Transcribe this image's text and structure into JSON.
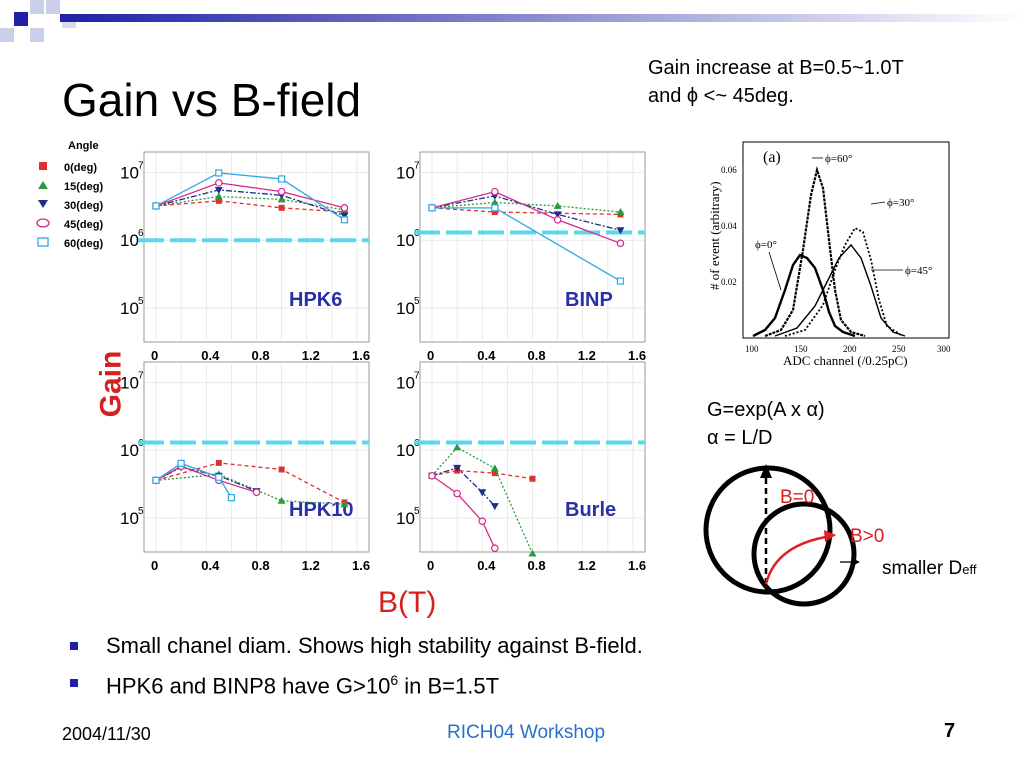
{
  "slide": {
    "title": "Gain vs B-field",
    "note_line1": "Gain increase at B=0.5~1.0T",
    "note_line2": "and ϕ <~ 45deg.",
    "y_axis_label": "Gain",
    "x_axis_label": "B(T)",
    "formula_line1": "G=exp(A x α)",
    "formula_line2": "α = L/D",
    "circle_label_b0": "B=0",
    "circle_label_bpos": "B>0",
    "circle_label_deff": "smaller D",
    "circle_label_deff_sub": "eff",
    "bullets": [
      "Small chanel diam. Shows high stability against B-field.",
      "HPK6 and BINP8 have G>10"
    ],
    "bullet2_sup": "6",
    "bullet2_tail": " in B=1.5T",
    "footer_date": "2004/11/30",
    "footer_center": "RICH04 Workshop",
    "footer_page": "7",
    "colors": {
      "title_blue": "#1f1fa8",
      "accent_red": "#d42020",
      "footer_blue": "#2a6fc9",
      "ref_line": "#58d8ea"
    }
  },
  "legend": {
    "title": "Angle",
    "items": [
      {
        "label": "0(deg)",
        "marker": "square",
        "color": "#e03030"
      },
      {
        "label": "15(deg)",
        "marker": "triangle-up",
        "color": "#2a9a3a"
      },
      {
        "label": "30(deg)",
        "marker": "triangle-down",
        "color": "#1f2e8a"
      },
      {
        "label": "45(deg)",
        "marker": "circle-open",
        "color": "#d6288a"
      },
      {
        "label": "60(deg)",
        "marker": "square-open",
        "color": "#30a8e0"
      }
    ]
  },
  "chart_data": [
    {
      "type": "line",
      "title": "HPK6",
      "xlim": [
        0,
        1.6
      ],
      "ylog": true,
      "xticks": [
        "0",
        "0.4",
        "0.8",
        "1.2",
        "1.6"
      ],
      "series": [
        {
          "name": "0(deg)",
          "x": [
            0,
            0.5,
            1.0,
            1.5
          ],
          "y": [
            3200000.0,
            3800000.0,
            3000000.0,
            2600000.0
          ]
        },
        {
          "name": "15(deg)",
          "x": [
            0,
            0.5,
            1.0,
            1.5
          ],
          "y": [
            3200000.0,
            4400000.0,
            4000000.0,
            2800000.0
          ]
        },
        {
          "name": "30(deg)",
          "x": [
            0,
            0.5,
            1.0,
            1.5
          ],
          "y": [
            3200000.0,
            5500000.0,
            4600000.0,
            2300000.0
          ]
        },
        {
          "name": "45(deg)",
          "x": [
            0,
            0.5,
            1.0,
            1.5
          ],
          "y": [
            3200000.0,
            7000000.0,
            5200000.0,
            3000000.0
          ]
        },
        {
          "name": "60(deg)",
          "x": [
            0,
            0.5,
            1.0,
            1.5
          ],
          "y": [
            3200000.0,
            9800000.0,
            8000000.0,
            2000000.0
          ]
        }
      ]
    },
    {
      "type": "line",
      "title": "BINP",
      "xlim": [
        0,
        1.6
      ],
      "ylog": true,
      "xticks": [
        "0",
        "0.4",
        "0.8",
        "1.2",
        "1.6"
      ],
      "series": [
        {
          "name": "0(deg)",
          "x": [
            0,
            0.5,
            1.5
          ],
          "y": [
            3000000.0,
            2600000.0,
            2400000.0
          ]
        },
        {
          "name": "15(deg)",
          "x": [
            0,
            0.5,
            1.0,
            1.5
          ],
          "y": [
            3000000.0,
            3600000.0,
            3200000.0,
            2600000.0
          ]
        },
        {
          "name": "30(deg)",
          "x": [
            0,
            0.5,
            1.0,
            1.5
          ],
          "y": [
            3000000.0,
            4500000.0,
            2400000.0,
            1400000.0
          ]
        },
        {
          "name": "45(deg)",
          "x": [
            0,
            0.5,
            1.0,
            1.5
          ],
          "y": [
            3000000.0,
            5200000.0,
            2000000.0,
            900000.0
          ]
        },
        {
          "name": "60(deg)",
          "x": [
            0,
            0.5,
            1.5
          ],
          "y": [
            3000000.0,
            3000000.0,
            250000.0
          ]
        }
      ]
    },
    {
      "type": "line",
      "title": "HPK10",
      "xlim": [
        0,
        1.6
      ],
      "ylog": true,
      "xticks": [
        "0",
        "0.4",
        "0.8",
        "1.2",
        "1.6"
      ],
      "series": [
        {
          "name": "0(deg)",
          "x": [
            0,
            0.5,
            1.0,
            1.5
          ],
          "y": [
            360000.0,
            650000.0,
            520000.0,
            170000.0
          ]
        },
        {
          "name": "15(deg)",
          "x": [
            0,
            0.5,
            1.0,
            1.5
          ],
          "y": [
            360000.0,
            440000.0,
            180000.0,
            160000.0
          ]
        },
        {
          "name": "30(deg)",
          "x": [
            0,
            0.2,
            0.5,
            0.8
          ],
          "y": [
            360000.0,
            560000.0,
            420000.0,
            250000.0
          ]
        },
        {
          "name": "45(deg)",
          "x": [
            0,
            0.2,
            0.5,
            0.8
          ],
          "y": [
            360000.0,
            580000.0,
            360000.0,
            240000.0
          ]
        },
        {
          "name": "60(deg)",
          "x": [
            0,
            0.2,
            0.5,
            0.6
          ],
          "y": [
            360000.0,
            640000.0,
            400000.0,
            200000.0
          ]
        }
      ]
    },
    {
      "type": "line",
      "title": "Burle",
      "xlim": [
        0,
        1.6
      ],
      "ylog": true,
      "xticks": [
        "0",
        "0.4",
        "0.8",
        "1.2",
        "1.6"
      ],
      "series": [
        {
          "name": "0(deg)",
          "x": [
            0,
            0.2,
            0.5,
            0.8
          ],
          "y": [
            420000.0,
            500000.0,
            460000.0,
            380000.0
          ]
        },
        {
          "name": "15(deg)",
          "x": [
            0,
            0.2,
            0.5,
            0.8
          ],
          "y": [
            420000.0,
            1100000.0,
            540000.0,
            30000.0
          ]
        },
        {
          "name": "30(deg)",
          "x": [
            0,
            0.2,
            0.4,
            0.5
          ],
          "y": [
            420000.0,
            550000.0,
            240000.0,
            150000.0
          ]
        },
        {
          "name": "45(deg)",
          "x": [
            0,
            0.2,
            0.4,
            0.5
          ],
          "y": [
            420000.0,
            230000.0,
            90000.0,
            36000.0
          ]
        }
      ]
    }
  ],
  "inset": {
    "label": "(a)",
    "xlabel": "ADC channel (/0.25pC)",
    "ylabel": "# of event (arbitrary)",
    "xticks": [
      "100",
      "150",
      "200",
      "250",
      "300"
    ],
    "yticks": [
      "0.02",
      "0.04",
      "0.06"
    ],
    "curves": [
      "ϕ=0°",
      "ϕ=60°",
      "ϕ=30°",
      "ϕ=45°"
    ]
  }
}
